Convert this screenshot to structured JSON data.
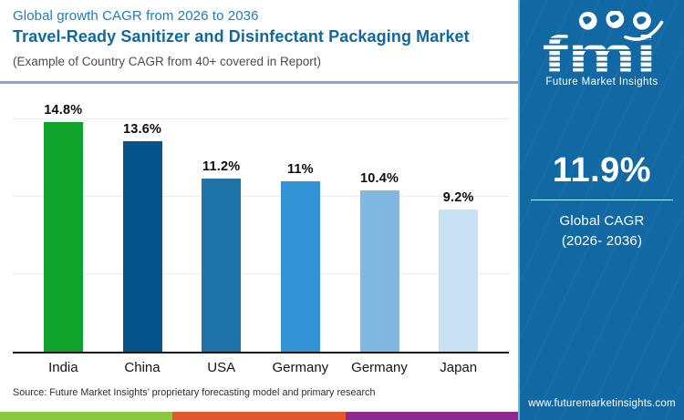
{
  "header": {
    "eyebrow": "Global growth CAGR from 2026 to 2036",
    "title": "Travel-Ready Sanitizer and Disinfectant Packaging Market",
    "note": "(Example of Country CAGR from 40+ covered in Report)"
  },
  "chart_data": {
    "type": "bar",
    "title": "Travel-Ready Sanitizer and Disinfectant Packaging Market — Country CAGR 2026 to 2036",
    "categories": [
      "India",
      "China",
      "USA",
      "Germany",
      "Germany",
      "Japan"
    ],
    "values": [
      14.8,
      13.6,
      11.2,
      11,
      10.4,
      9.2
    ],
    "value_labels": [
      "14.8%",
      "13.6%",
      "11.2%",
      "11%",
      "10.4%",
      "9.2%"
    ],
    "bar_colors": [
      "#0fa32c",
      "#07548a",
      "#1e74a8",
      "#3294d4",
      "#7fb9e2",
      "#c8e1f3"
    ],
    "xlabel": "",
    "ylabel": "",
    "ylim": [
      0,
      17
    ],
    "gridlines_percent": [
      5,
      10,
      15
    ],
    "grid": true,
    "legend_position": "none"
  },
  "source_note": "Source: Future Market Insights’ proprietary forecasting model and primary research",
  "sidebar": {
    "logo_text": "fmi",
    "logo_caption": "Future Market Insights",
    "stat_value": "11.9%",
    "stat_label_line1": "Global CAGR",
    "stat_label_line2": "(2026- 2036)",
    "website": "www.futuremarketinsights.com",
    "bg_color": "#1168a3"
  },
  "footer_strip_colors": [
    "#8cc63f",
    "#e4572a",
    "#8e2a8d"
  ],
  "icons": {
    "globe_circles": [
      "globe-americas-icon",
      "globe-europe-icon",
      "globe-asia-icon"
    ]
  }
}
